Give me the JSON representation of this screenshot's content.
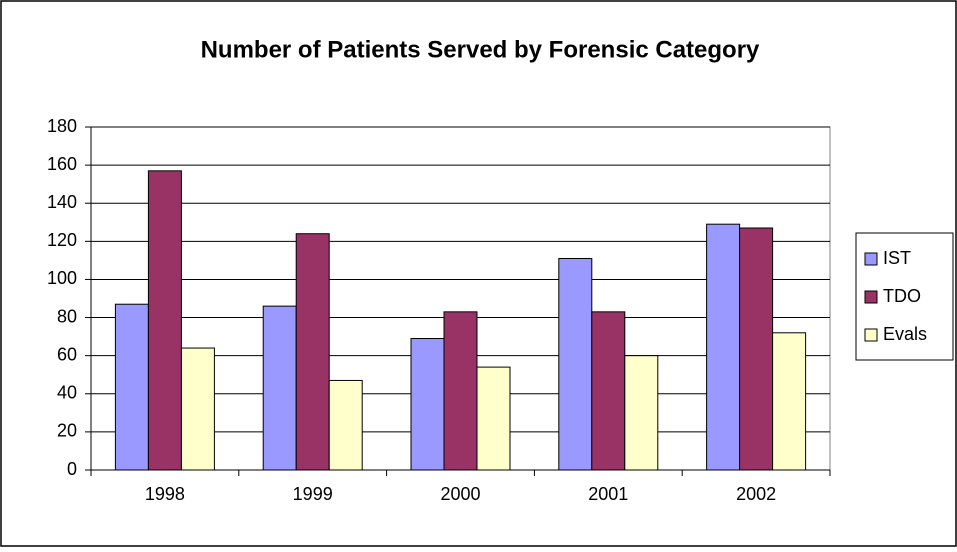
{
  "chart_data": {
    "type": "bar",
    "title": "Number of Patients Served by Forensic Category",
    "categories": [
      "1998",
      "1999",
      "2000",
      "2001",
      "2002"
    ],
    "series": [
      {
        "name": "IST",
        "color": "#9999ff",
        "values": [
          87,
          86,
          69,
          111,
          129
        ]
      },
      {
        "name": "TDO",
        "color": "#993366",
        "values": [
          157,
          124,
          83,
          83,
          127
        ]
      },
      {
        "name": "Evals",
        "color": "#ffffcc",
        "values": [
          64,
          47,
          54,
          60,
          72
        ]
      }
    ],
    "ylim": [
      0,
      180
    ],
    "yticks": [
      0,
      20,
      40,
      60,
      80,
      100,
      120,
      140,
      160,
      180
    ],
    "grid": true,
    "legend": "right"
  }
}
